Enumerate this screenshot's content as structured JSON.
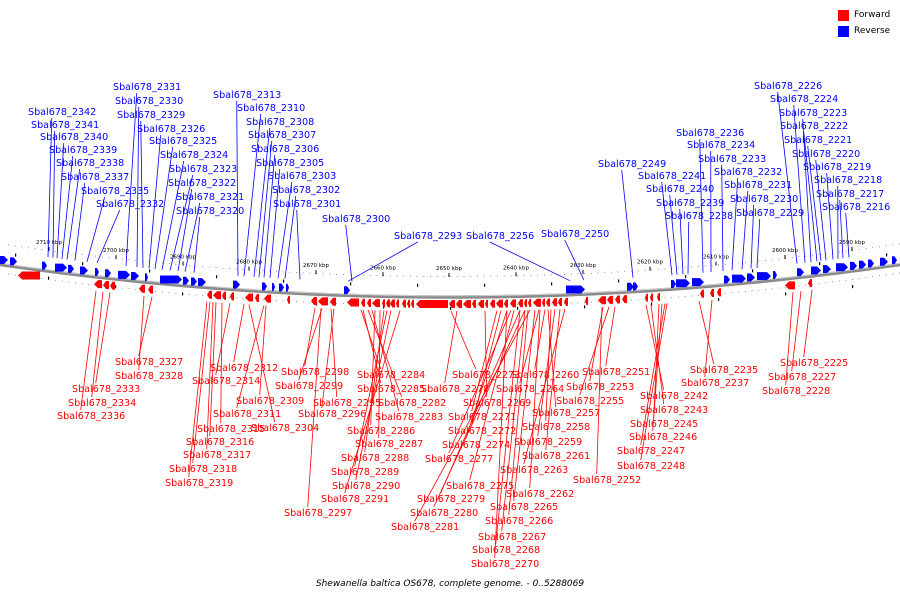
{
  "legend": [
    {
      "label": "Forward",
      "color": "#ff0000"
    },
    {
      "label": "Reverse",
      "color": "#0000ff"
    }
  ],
  "caption": "Shewanella baltica OS678, complete genome. - 0..5288069",
  "ruler": [
    "2710 kbp",
    "2700 kbp",
    "2690 kbp",
    "2680 kbp",
    "2670 kbp",
    "2660 kbp",
    "2650 kbp",
    "2640 kbp",
    "2630 kbp",
    "2620 kbp",
    "2610 kbp",
    "2600 kbp",
    "2590 kbp"
  ],
  "reverse_genes": [
    "Sbal678_2342",
    "Sbal678_2341",
    "Sbal678_2340",
    "Sbal678_2339",
    "Sbal678_2338",
    "Sbal678_2337",
    "Sbal678_2335",
    "Sbal678_2332",
    "Sbal678_2331",
    "Sbal678_2330",
    "Sbal678_2329",
    "Sbal678_2326",
    "Sbal678_2325",
    "Sbal678_2324",
    "Sbal678_2323",
    "Sbal678_2322",
    "Sbal678_2321",
    "Sbal678_2320",
    "Sbal678_2313",
    "Sbal678_2310",
    "Sbal678_2308",
    "Sbal678_2307",
    "Sbal678_2306",
    "Sbal678_2305",
    "Sbal678_2303",
    "Sbal678_2302",
    "Sbal678_2301",
    "Sbal678_2300",
    "Sbal678_2293",
    "Sbal678_2256",
    "Sbal678_2250",
    "Sbal678_2249",
    "Sbal678_2241",
    "Sbal678_2240",
    "Sbal678_2239",
    "Sbal678_2238",
    "Sbal678_2236",
    "Sbal678_2234",
    "Sbal678_2233",
    "Sbal678_2232",
    "Sbal678_2231",
    "Sbal678_2230",
    "Sbal678_2229",
    "Sbal678_2226",
    "Sbal678_2224",
    "Sbal678_2223",
    "Sbal678_2222",
    "Sbal678_2221",
    "Sbal678_2220",
    "Sbal678_2219",
    "Sbal678_2218",
    "Sbal678_2217",
    "Sbal678_2216"
  ],
  "forward_genes": [
    "Sbal678_2327",
    "Sbal678_2328",
    "Sbal678_2333",
    "Sbal678_2334",
    "Sbal678_2336",
    "Sbal678_2312",
    "Sbal678_2314",
    "Sbal678_2315",
    "Sbal678_2316",
    "Sbal678_2317",
    "Sbal678_2318",
    "Sbal678_2319",
    "Sbal678_2309",
    "Sbal678_2311",
    "Sbal678_2304",
    "Sbal678_2298",
    "Sbal678_2299",
    "Sbal678_2295",
    "Sbal678_2296",
    "Sbal678_2297",
    "Sbal678_2284",
    "Sbal678_2285",
    "Sbal678_2282",
    "Sbal678_2283",
    "Sbal678_2286",
    "Sbal678_2287",
    "Sbal678_2288",
    "Sbal678_2289",
    "Sbal678_2290",
    "Sbal678_2291",
    "Sbal678_2273",
    "Sbal678_2278",
    "Sbal678_2269",
    "Sbal678_2271",
    "Sbal678_2272",
    "Sbal678_2274",
    "Sbal678_2277",
    "Sbal678_2275",
    "Sbal678_2279",
    "Sbal678_2280",
    "Sbal678_2281",
    "Sbal678_2260",
    "Sbal678_2264",
    "Sbal678_2257",
    "Sbal678_2258",
    "Sbal678_2259",
    "Sbal678_2261",
    "Sbal678_2263",
    "Sbal678_2262",
    "Sbal678_2265",
    "Sbal678_2266",
    "Sbal678_2267",
    "Sbal678_2268",
    "Sbal678_2270",
    "Sbal678_2251",
    "Sbal678_2253",
    "Sbal678_2255",
    "Sbal678_2252",
    "Sbal678_2242",
    "Sbal678_2243",
    "Sbal678_2245",
    "Sbal678_2246",
    "Sbal678_2247",
    "Sbal678_2248",
    "Sbal678_2235",
    "Sbal678_2237",
    "Sbal678_2225",
    "Sbal678_2227",
    "Sbal678_2228"
  ]
}
